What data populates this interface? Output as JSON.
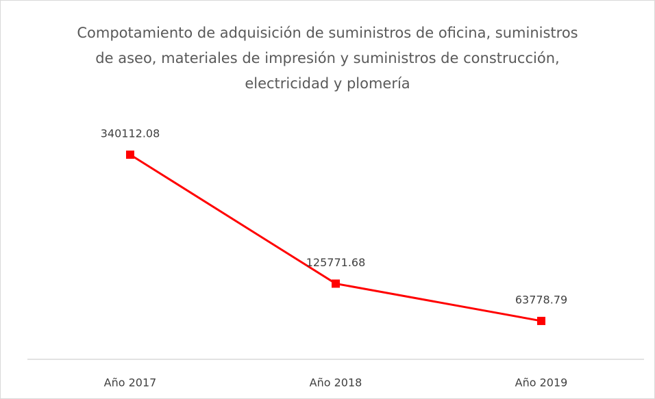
{
  "chart_data": {
    "type": "line",
    "title": "Compotamiento de adquisición de suministros de oficina, suministros de aseo, materiales de impresión y suministros de construcción, electricidad y plomería",
    "categories": [
      "Año 2017",
      "Año 2018",
      "Año 2019"
    ],
    "values": [
      340112.08,
      125771.68,
      63778.79
    ],
    "color": "#ff0000"
  }
}
